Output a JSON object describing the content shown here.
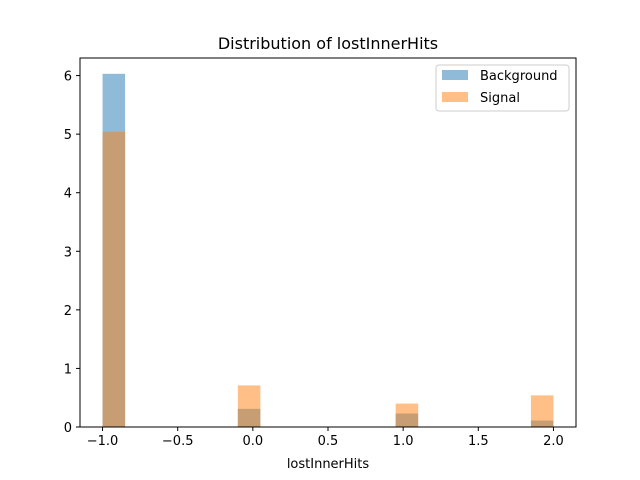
{
  "chart_data": {
    "type": "bar",
    "title": "Distribution of lostInnerHits",
    "xlabel": "lostInnerHits",
    "ylabel": "",
    "xlim": [
      -1.15,
      2.15
    ],
    "ylim": [
      0,
      6.3
    ],
    "xticks": [
      "−1.0",
      "−0.5",
      "0.0",
      "0.5",
      "1.0",
      "1.5",
      "2.0"
    ],
    "xtick_values": [
      -1.0,
      -0.5,
      0.0,
      0.5,
      1.0,
      1.5,
      2.0
    ],
    "yticks": [
      "0",
      "1",
      "2",
      "3",
      "4",
      "5",
      "6"
    ],
    "ytick_values": [
      0,
      1,
      2,
      3,
      4,
      5,
      6
    ],
    "bin_width": 0.15,
    "grid": false,
    "legend_position": "top-right",
    "series": [
      {
        "name": "Background",
        "color": "#1f77b4",
        "opacity": 0.5,
        "bins": [
          {
            "x0": -1.0,
            "x1": -0.85,
            "value": 6.03
          },
          {
            "x0": -0.1,
            "x1": 0.05,
            "value": 0.31
          },
          {
            "x0": 0.95,
            "x1": 1.1,
            "value": 0.23
          },
          {
            "x0": 1.85,
            "x1": 2.0,
            "value": 0.11
          }
        ]
      },
      {
        "name": "Signal",
        "color": "#ff7f0e",
        "opacity": 0.5,
        "bins": [
          {
            "x0": -1.0,
            "x1": -0.85,
            "value": 5.04
          },
          {
            "x0": -0.1,
            "x1": 0.05,
            "value": 0.71
          },
          {
            "x0": 0.95,
            "x1": 1.1,
            "value": 0.4
          },
          {
            "x0": 1.85,
            "x1": 2.0,
            "value": 0.54
          }
        ]
      }
    ]
  }
}
